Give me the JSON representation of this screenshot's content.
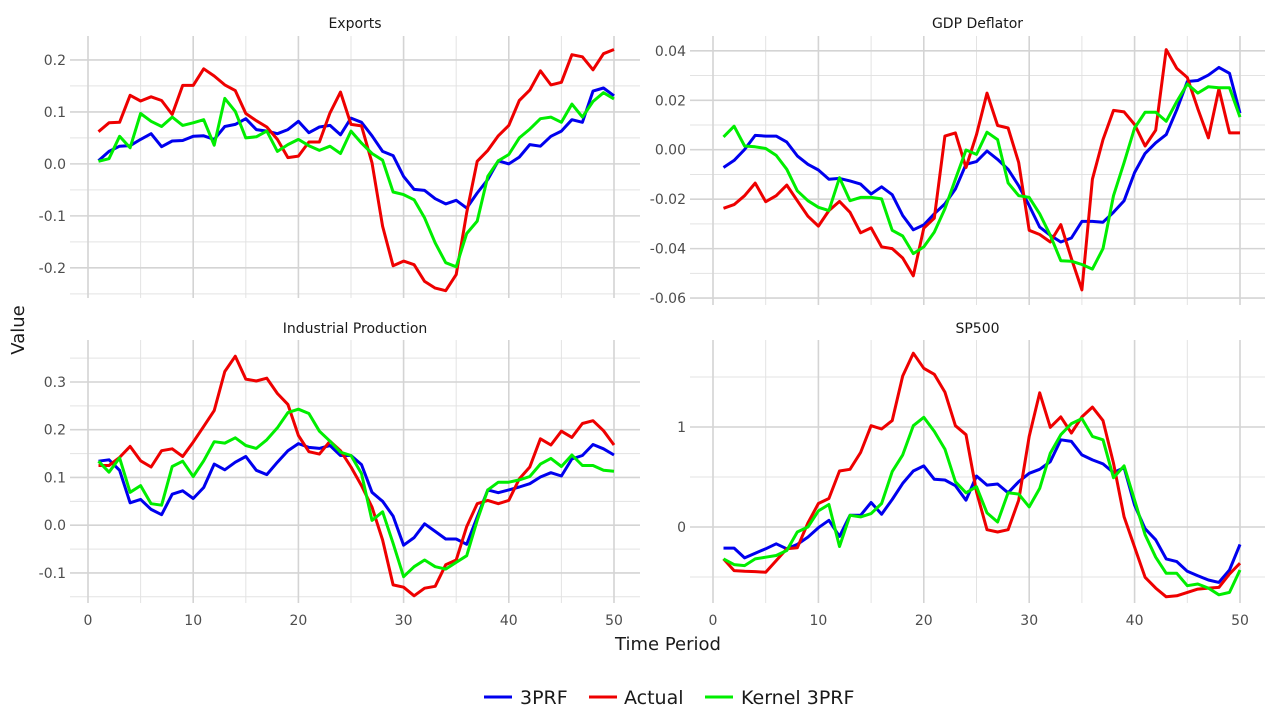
{
  "chart_data": {
    "type": "line",
    "xlabel": "Time Period",
    "ylabel": "Value",
    "legend": {
      "position": "bottom",
      "entries": [
        "3PRF",
        "Actual",
        "Kernel 3PRF"
      ]
    },
    "series_colors": {
      "3PRF": "#0000ee",
      "Actual": "#ee0000",
      "Kernel 3PRF": "#00ee00"
    },
    "grid": true,
    "x": [
      1,
      2,
      3,
      4,
      5,
      6,
      7,
      8,
      9,
      10,
      11,
      12,
      13,
      14,
      15,
      16,
      17,
      18,
      19,
      20,
      21,
      22,
      23,
      24,
      25,
      26,
      27,
      28,
      29,
      30,
      31,
      32,
      33,
      34,
      35,
      36,
      37,
      38,
      39,
      40,
      41,
      42,
      43,
      44,
      45,
      46,
      47,
      48,
      49,
      50
    ],
    "xticks": [
      0,
      10,
      20,
      30,
      40,
      50
    ],
    "panels": [
      {
        "title": "Exports",
        "yticks": [
          -0.2,
          -0.1,
          0.0,
          0.1,
          0.2
        ],
        "ytick_labels": [
          "-0.2",
          "-0.1",
          "0.0",
          "0.1",
          "0.2"
        ],
        "ylim": [
          -0.258,
          0.246
        ],
        "series": [
          {
            "name": "3PRF",
            "values": [
              0.006,
              0.024,
              0.034,
              0.035,
              0.047,
              0.058,
              0.033,
              0.044,
              0.045,
              0.053,
              0.054,
              0.047,
              0.072,
              0.076,
              0.087,
              0.066,
              0.063,
              0.058,
              0.066,
              0.082,
              0.06,
              0.071,
              0.074,
              0.056,
              0.088,
              0.08,
              0.054,
              0.024,
              0.016,
              -0.024,
              -0.049,
              -0.051,
              -0.067,
              -0.077,
              -0.07,
              -0.085,
              -0.056,
              -0.03,
              0.006,
              0.0,
              0.013,
              0.037,
              0.034,
              0.053,
              0.063,
              0.085,
              0.08,
              0.14,
              0.146,
              0.131
            ]
          },
          {
            "name": "Actual",
            "values": [
              0.062,
              0.079,
              0.08,
              0.132,
              0.121,
              0.129,
              0.122,
              0.095,
              0.151,
              0.151,
              0.183,
              0.169,
              0.152,
              0.141,
              0.097,
              0.083,
              0.071,
              0.047,
              0.012,
              0.015,
              0.042,
              0.042,
              0.098,
              0.138,
              0.076,
              0.073,
              0.002,
              -0.12,
              -0.196,
              -0.187,
              -0.194,
              -0.226,
              -0.239,
              -0.244,
              -0.213,
              -0.094,
              0.005,
              0.026,
              0.054,
              0.074,
              0.122,
              0.142,
              0.179,
              0.152,
              0.157,
              0.21,
              0.206,
              0.181,
              0.212,
              0.22
            ]
          },
          {
            "name": "Kernel 3PRF",
            "values": [
              0.005,
              0.01,
              0.053,
              0.031,
              0.097,
              0.082,
              0.072,
              0.09,
              0.074,
              0.079,
              0.085,
              0.036,
              0.126,
              0.101,
              0.05,
              0.052,
              0.063,
              0.024,
              0.037,
              0.047,
              0.035,
              0.026,
              0.034,
              0.02,
              0.063,
              0.04,
              0.02,
              0.007,
              -0.054,
              -0.059,
              -0.069,
              -0.104,
              -0.152,
              -0.19,
              -0.198,
              -0.134,
              -0.11,
              -0.024,
              0.006,
              0.018,
              0.05,
              0.067,
              0.087,
              0.09,
              0.08,
              0.115,
              0.09,
              0.12,
              0.137,
              0.125
            ]
          }
        ]
      },
      {
        "title": "GDP Deflator",
        "yticks": [
          -0.06,
          -0.04,
          -0.02,
          0.0,
          0.02,
          0.04
        ],
        "ytick_labels": [
          "-0.06",
          "-0.04",
          "-0.02",
          "0.00",
          "0.02",
          "0.04"
        ],
        "ylim": [
          -0.0628,
          0.046
        ],
        "series": [
          {
            "name": "3PRF",
            "values": [
              -0.0072,
              -0.0043,
              0.0001,
              0.0058,
              0.0055,
              0.0055,
              0.0031,
              -0.0025,
              -0.0059,
              -0.0082,
              -0.0119,
              -0.0116,
              -0.0126,
              -0.0139,
              -0.0179,
              -0.015,
              -0.0182,
              -0.0266,
              -0.0324,
              -0.0304,
              -0.0259,
              -0.0219,
              -0.0159,
              -0.0059,
              -0.0048,
              -0.0005,
              -0.0039,
              -0.0079,
              -0.0146,
              -0.0226,
              -0.0313,
              -0.0346,
              -0.0373,
              -0.0357,
              -0.029,
              -0.029,
              -0.0293,
              -0.0253,
              -0.0206,
              -0.0092,
              -0.0015,
              0.0028,
              0.0061,
              0.0162,
              0.0276,
              0.028,
              0.0302,
              0.0333,
              0.0309,
              0.0148
            ]
          },
          {
            "name": "Actual",
            "values": [
              -0.0237,
              -0.0222,
              -0.0186,
              -0.0135,
              -0.021,
              -0.0186,
              -0.0143,
              -0.0206,
              -0.0269,
              -0.0309,
              -0.0246,
              -0.0209,
              -0.0253,
              -0.0336,
              -0.0316,
              -0.0393,
              -0.04,
              -0.0438,
              -0.051,
              -0.0317,
              -0.0277,
              0.0055,
              0.0068,
              -0.0072,
              0.0061,
              0.0229,
              0.0098,
              0.0088,
              -0.0052,
              -0.0326,
              -0.0343,
              -0.0373,
              -0.0303,
              -0.044,
              -0.0567,
              -0.0119,
              0.0041,
              0.0159,
              0.0153,
              0.0102,
              0.0015,
              0.0079,
              0.0405,
              0.0329,
              0.0292,
              0.0166,
              0.0048,
              0.0246,
              0.0068,
              0.0068
            ]
          },
          {
            "name": "Kernel 3PRF",
            "values": [
              0.0052,
              0.0095,
              0.0015,
              0.0012,
              0.0005,
              -0.0023,
              -0.0079,
              -0.0166,
              -0.0206,
              -0.0233,
              -0.0246,
              -0.0113,
              -0.0206,
              -0.0193,
              -0.0193,
              -0.0199,
              -0.0326,
              -0.0349,
              -0.042,
              -0.0393,
              -0.0333,
              -0.0239,
              -0.0119,
              -0.0001,
              -0.0019,
              0.0071,
              0.0041,
              -0.0134,
              -0.0186,
              -0.0193,
              -0.0259,
              -0.0346,
              -0.0449,
              -0.0451,
              -0.0464,
              -0.0483,
              -0.04,
              -0.0186,
              -0.0052,
              0.0088,
              0.0152,
              0.0152,
              0.0115,
              0.0195,
              0.0266,
              0.0229,
              0.0255,
              0.0251,
              0.0251,
              0.0132
            ]
          }
        ]
      },
      {
        "title": "Industrial Production",
        "yticks": [
          -0.1,
          0.0,
          0.1,
          0.2,
          0.3
        ],
        "ytick_labels": [
          "-0.1",
          "0.0",
          "0.1",
          "0.2",
          "0.3"
        ],
        "ylim": [
          -0.163,
          0.388
        ],
        "series": [
          {
            "name": "3PRF",
            "values": [
              0.134,
              0.137,
              0.115,
              0.047,
              0.054,
              0.033,
              0.022,
              0.065,
              0.072,
              0.056,
              0.079,
              0.128,
              0.116,
              0.132,
              0.144,
              0.115,
              0.106,
              0.132,
              0.156,
              0.171,
              0.163,
              0.161,
              0.167,
              0.146,
              0.146,
              0.127,
              0.069,
              0.05,
              0.019,
              -0.042,
              -0.026,
              0.003,
              -0.013,
              -0.029,
              -0.029,
              -0.04,
              0.017,
              0.074,
              0.068,
              0.074,
              0.08,
              0.087,
              0.101,
              0.11,
              0.103,
              0.139,
              0.146,
              0.169,
              0.16,
              0.147
            ]
          },
          {
            "name": "Actual",
            "values": [
              0.125,
              0.125,
              0.142,
              0.165,
              0.135,
              0.122,
              0.156,
              0.16,
              0.144,
              0.174,
              0.207,
              0.24,
              0.322,
              0.354,
              0.306,
              0.302,
              0.308,
              0.276,
              0.253,
              0.188,
              0.154,
              0.149,
              0.176,
              0.156,
              0.122,
              0.083,
              0.038,
              -0.031,
              -0.125,
              -0.13,
              -0.148,
              -0.132,
              -0.128,
              -0.083,
              -0.073,
              -0.003,
              0.045,
              0.052,
              0.045,
              0.052,
              0.097,
              0.122,
              0.181,
              0.168,
              0.197,
              0.184,
              0.213,
              0.219,
              0.198,
              0.168
            ]
          },
          {
            "name": "Kernel 3PRF",
            "values": [
              0.134,
              0.111,
              0.141,
              0.069,
              0.083,
              0.045,
              0.042,
              0.123,
              0.134,
              0.102,
              0.135,
              0.175,
              0.172,
              0.183,
              0.167,
              0.161,
              0.179,
              0.204,
              0.236,
              0.243,
              0.234,
              0.197,
              0.176,
              0.153,
              0.146,
              0.108,
              0.01,
              0.028,
              -0.038,
              -0.108,
              -0.087,
              -0.073,
              -0.087,
              -0.092,
              -0.078,
              -0.064,
              0.01,
              0.074,
              0.09,
              0.09,
              0.095,
              0.102,
              0.128,
              0.14,
              0.123,
              0.147,
              0.125,
              0.125,
              0.115,
              0.113
            ]
          }
        ]
      },
      {
        "title": "SP500",
        "yticks": [
          0,
          1
        ],
        "ytick_labels": [
          "0",
          "1"
        ],
        "ylim": [
          -0.76,
          1.87
        ],
        "series": [
          {
            "name": "3PRF",
            "values": [
              -0.211,
              -0.211,
              -0.309,
              -0.262,
              -0.218,
              -0.168,
              -0.218,
              -0.174,
              -0.101,
              -0.007,
              0.067,
              -0.094,
              0.117,
              0.117,
              0.245,
              0.128,
              0.275,
              0.436,
              0.56,
              0.611,
              0.477,
              0.47,
              0.413,
              0.268,
              0.51,
              0.419,
              0.43,
              0.342,
              0.453,
              0.537,
              0.577,
              0.654,
              0.872,
              0.856,
              0.721,
              0.671,
              0.631,
              0.544,
              0.594,
              0.218,
              -0.017,
              -0.128,
              -0.319,
              -0.346,
              -0.443,
              -0.487,
              -0.53,
              -0.554,
              -0.43,
              -0.174
            ]
          },
          {
            "name": "Actual",
            "values": [
              -0.319,
              -0.436,
              -0.443,
              -0.446,
              -0.453,
              -0.336,
              -0.218,
              -0.208,
              0.04,
              0.235,
              0.285,
              0.56,
              0.577,
              0.745,
              1.013,
              0.98,
              1.064,
              1.51,
              1.738,
              1.587,
              1.527,
              1.349,
              1.013,
              0.923,
              0.352,
              -0.027,
              -0.05,
              -0.027,
              0.268,
              0.906,
              1.342,
              0.997,
              1.101,
              0.94,
              1.101,
              1.199,
              1.064,
              0.638,
              0.101,
              -0.201,
              -0.503,
              -0.611,
              -0.698,
              -0.688,
              -0.654,
              -0.621,
              -0.611,
              -0.604,
              -0.47,
              -0.362
            ]
          },
          {
            "name": "Kernel 3PRF",
            "values": [
              -0.319,
              -0.376,
              -0.386,
              -0.319,
              -0.302,
              -0.285,
              -0.235,
              -0.05,
              0.0,
              0.161,
              0.225,
              -0.195,
              0.117,
              0.101,
              0.134,
              0.235,
              0.554,
              0.721,
              1.013,
              1.097,
              0.956,
              0.779,
              0.453,
              0.342,
              0.403,
              0.141,
              0.05,
              0.342,
              0.329,
              0.201,
              0.386,
              0.738,
              0.923,
              1.034,
              1.084,
              0.906,
              0.872,
              0.493,
              0.611,
              0.268,
              -0.077,
              -0.302,
              -0.463,
              -0.463,
              -0.587,
              -0.57,
              -0.611,
              -0.678,
              -0.654,
              -0.43
            ]
          }
        ]
      }
    ]
  }
}
